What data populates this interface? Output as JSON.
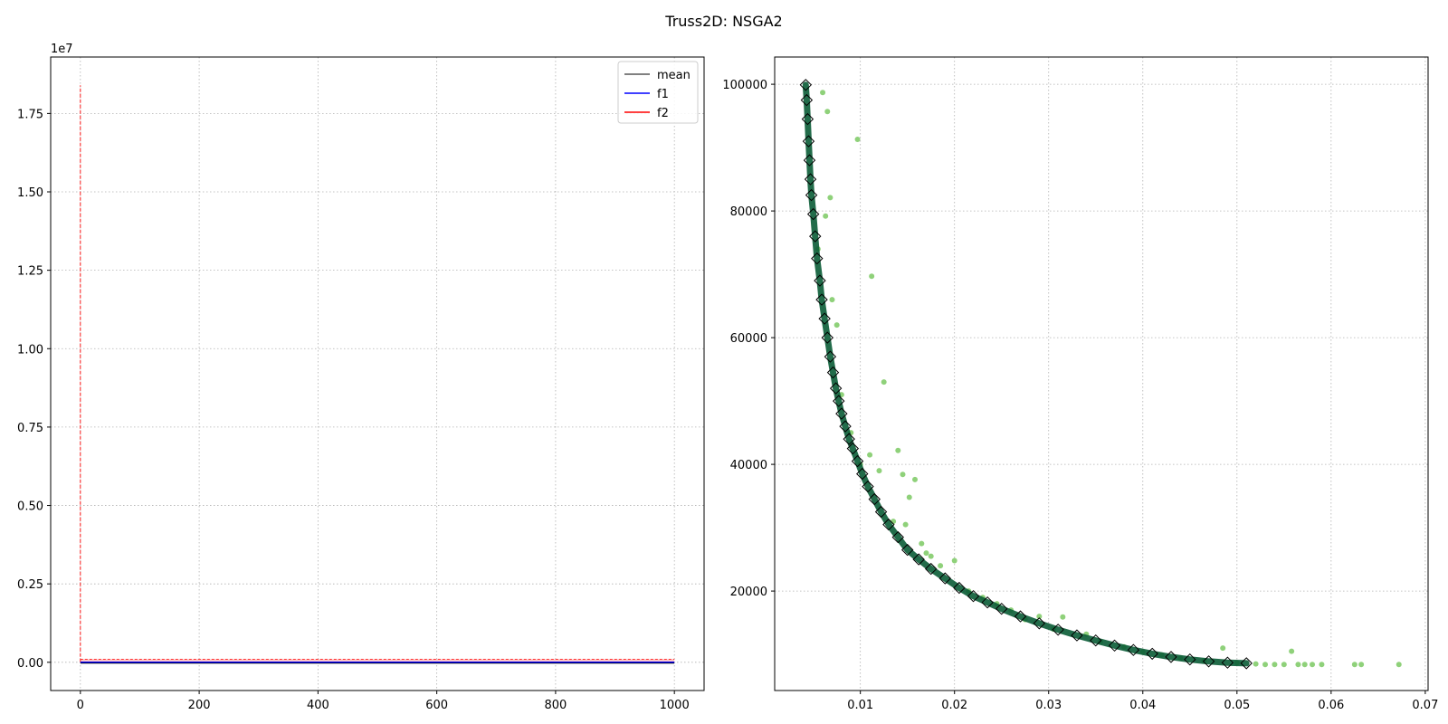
{
  "figure": {
    "title": "Truss2D: NSGA2"
  },
  "chart_data": [
    {
      "type": "line",
      "x_range": [
        0,
        1000
      ],
      "xlim": [
        -50,
        1050
      ],
      "ylim": [
        -900000,
        19300000
      ],
      "y_scale_label": "1e7",
      "x_ticks": [
        0,
        200,
        400,
        600,
        800,
        1000
      ],
      "x_tick_labels": [
        "0",
        "200",
        "400",
        "600",
        "800",
        "1000"
      ],
      "y_ticks": [
        0,
        2500000,
        5000000,
        7500000,
        10000000,
        12500000,
        15000000,
        17500000
      ],
      "y_tick_labels": [
        "0.00",
        "0.25",
        "0.50",
        "0.75",
        "1.00",
        "1.25",
        "1.50",
        "1.75"
      ],
      "grid": true,
      "legend_position": "top-right",
      "series": [
        {
          "name": "mean",
          "color": "#000000",
          "start_value": 0,
          "end_value": 0
        },
        {
          "name": "f1",
          "color": "#0000ff",
          "start_value": 0,
          "end_value": 0
        },
        {
          "name": "f2",
          "color": "#ff0000",
          "start_value": 18400000,
          "end_value": 100000,
          "band_dashed": true
        }
      ]
    },
    {
      "type": "scatter",
      "xlim": [
        0.0009,
        0.0703
      ],
      "ylim": [
        4300,
        104300
      ],
      "x_ticks": [
        0.01,
        0.02,
        0.03,
        0.04,
        0.05,
        0.06,
        0.07
      ],
      "x_tick_labels": [
        "0.01",
        "0.02",
        "0.03",
        "0.04",
        "0.05",
        "0.06",
        "0.07"
      ],
      "y_ticks": [
        20000,
        40000,
        60000,
        80000,
        100000
      ],
      "y_tick_labels": [
        "20000",
        "40000",
        "60000",
        "80000",
        "100000"
      ],
      "grid": true,
      "colors": {
        "population": "#8fd17a",
        "front_fill": "#0a5c36",
        "front_marker": "#000000"
      },
      "front_points": [
        [
          0.0042,
          99900
        ],
        [
          0.0043,
          97500
        ],
        [
          0.0044,
          94500
        ],
        [
          0.0045,
          91000
        ],
        [
          0.0046,
          88000
        ],
        [
          0.0047,
          85000
        ],
        [
          0.0048,
          82500
        ],
        [
          0.005,
          79500
        ],
        [
          0.0052,
          76000
        ],
        [
          0.0054,
          72500
        ],
        [
          0.0057,
          69000
        ],
        [
          0.0059,
          66000
        ],
        [
          0.0062,
          63000
        ],
        [
          0.0065,
          60000
        ],
        [
          0.0068,
          57000
        ],
        [
          0.0071,
          54500
        ],
        [
          0.0074,
          52000
        ],
        [
          0.0077,
          50000
        ],
        [
          0.008,
          48000
        ],
        [
          0.0084,
          46000
        ],
        [
          0.0088,
          44000
        ],
        [
          0.0092,
          42500
        ],
        [
          0.0097,
          40500
        ],
        [
          0.0102,
          38500
        ],
        [
          0.0108,
          36500
        ],
        [
          0.0115,
          34500
        ],
        [
          0.0122,
          32500
        ],
        [
          0.013,
          30500
        ],
        [
          0.014,
          28500
        ],
        [
          0.015,
          26500
        ],
        [
          0.0162,
          25000
        ],
        [
          0.0175,
          23500
        ],
        [
          0.019,
          22000
        ],
        [
          0.0205,
          20500
        ],
        [
          0.022,
          19200
        ],
        [
          0.0235,
          18200
        ],
        [
          0.025,
          17200
        ],
        [
          0.027,
          16000
        ],
        [
          0.029,
          14900
        ],
        [
          0.031,
          13900
        ],
        [
          0.033,
          13000
        ],
        [
          0.035,
          12200
        ],
        [
          0.037,
          11400
        ],
        [
          0.039,
          10700
        ],
        [
          0.041,
          10100
        ],
        [
          0.043,
          9600
        ],
        [
          0.045,
          9200
        ],
        [
          0.047,
          8900
        ],
        [
          0.049,
          8700
        ],
        [
          0.051,
          8600
        ]
      ],
      "population_points": [
        [
          0.006,
          98700
        ],
        [
          0.0065,
          95700
        ],
        [
          0.0097,
          91300
        ],
        [
          0.0068,
          82100
        ],
        [
          0.0063,
          79200
        ],
        [
          0.0112,
          69700
        ],
        [
          0.007,
          66000
        ],
        [
          0.0075,
          62000
        ],
        [
          0.0125,
          53000
        ],
        [
          0.014,
          42200
        ],
        [
          0.0145,
          38400
        ],
        [
          0.0158,
          37600
        ],
        [
          0.0152,
          34800
        ],
        [
          0.011,
          41500
        ],
        [
          0.012,
          39000
        ],
        [
          0.0148,
          30500
        ],
        [
          0.0165,
          27500
        ],
        [
          0.017,
          26000
        ],
        [
          0.0185,
          24000
        ],
        [
          0.02,
          24800
        ],
        [
          0.023,
          19000
        ],
        [
          0.026,
          17000
        ],
        [
          0.029,
          16000
        ],
        [
          0.0315,
          15900
        ],
        [
          0.034,
          13200
        ],
        [
          0.038,
          11200
        ],
        [
          0.042,
          9900
        ],
        [
          0.0485,
          11000
        ],
        [
          0.05,
          8700
        ],
        [
          0.052,
          8500
        ],
        [
          0.053,
          8400
        ],
        [
          0.054,
          8400
        ],
        [
          0.055,
          8400
        ],
        [
          0.0558,
          10500
        ],
        [
          0.0565,
          8400
        ],
        [
          0.0572,
          8400
        ],
        [
          0.058,
          8400
        ],
        [
          0.059,
          8400
        ],
        [
          0.0625,
          8400
        ],
        [
          0.0632,
          8400
        ],
        [
          0.0672,
          8400
        ],
        [
          0.0055,
          74000
        ],
        [
          0.008,
          51000
        ],
        [
          0.009,
          45000
        ],
        [
          0.01,
          40000
        ],
        [
          0.0135,
          31000
        ],
        [
          0.0175,
          25500
        ],
        [
          0.0215,
          20000
        ],
        [
          0.0245,
          18000
        ],
        [
          0.0275,
          15500
        ],
        [
          0.0305,
          14000
        ],
        [
          0.0355,
          12000
        ],
        [
          0.04,
          10400
        ],
        [
          0.044,
          9400
        ],
        [
          0.0465,
          9000
        ]
      ]
    }
  ]
}
